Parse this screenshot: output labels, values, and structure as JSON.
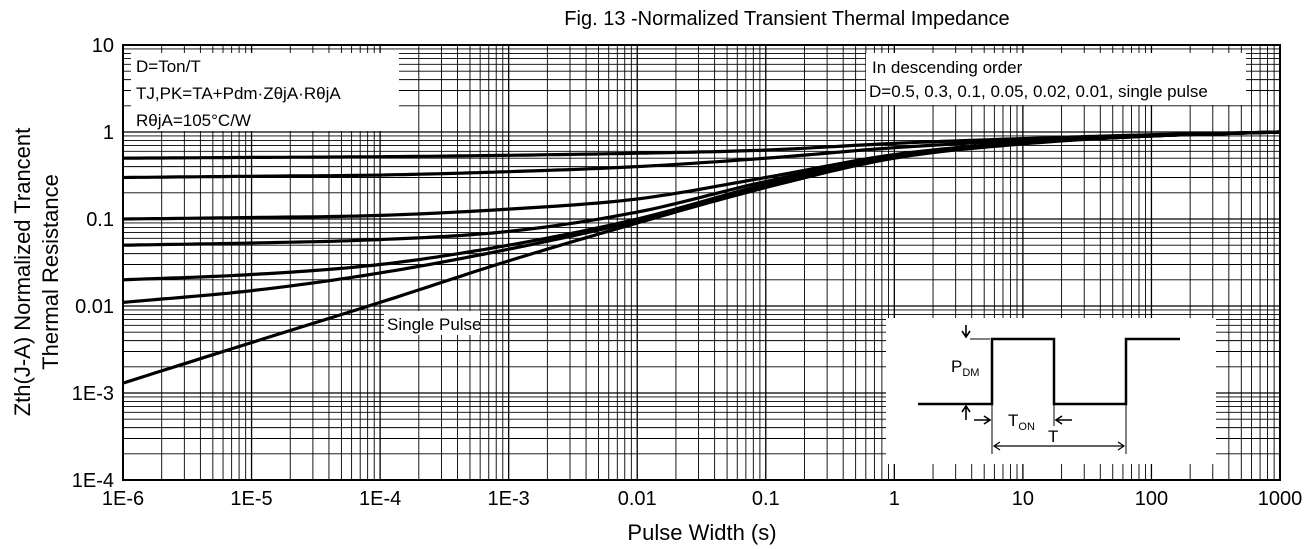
{
  "chart_data": {
    "type": "line",
    "title": "Fig. 13 -Normalized Transient Thermal Impedance",
    "xlabel": "Pulse Width (s)",
    "ylabel_line1": "Zth(J-A) Normalized Trancent",
    "ylabel_line2": "Thermal Resistance",
    "x_scale": "log",
    "y_scale": "log",
    "xlim": [
      1e-06,
      1000
    ],
    "ylim": [
      0.0001,
      10
    ],
    "grid": true,
    "x_tick_values": [
      1e-06,
      1e-05,
      0.0001,
      0.001,
      0.01,
      0.1,
      1,
      10,
      100,
      1000
    ],
    "x_tick_labels": [
      "1E-6",
      "1E-5",
      "1E-4",
      "1E-3",
      "0.01",
      "0.1",
      "1",
      "10",
      "100",
      "1000"
    ],
    "y_tick_values": [
      0.0001,
      0.001,
      0.01,
      0.1,
      1,
      10
    ],
    "y_tick_labels": [
      "1E-4",
      "1E-3",
      "0.01",
      "0.1",
      "1",
      "10"
    ],
    "series": [
      {
        "x": [
          1e-06,
          1e-05,
          0.0001,
          0.001,
          0.01,
          0.1,
          1,
          10,
          100,
          1000
        ],
        "y": [
          0.5,
          0.51,
          0.52,
          0.54,
          0.57,
          0.62,
          0.74,
          0.84,
          0.93,
          1.0
        ]
      },
      {
        "x": [
          1e-06,
          1e-05,
          0.0001,
          0.001,
          0.01,
          0.1,
          1,
          10,
          100,
          1000
        ],
        "y": [
          0.3,
          0.31,
          0.32,
          0.35,
          0.4,
          0.5,
          0.66,
          0.8,
          0.92,
          1.0
        ]
      },
      {
        "x": [
          1e-06,
          1e-05,
          0.0001,
          0.001,
          0.01,
          0.1,
          1,
          10,
          100,
          1000
        ],
        "y": [
          0.1,
          0.104,
          0.11,
          0.13,
          0.17,
          0.3,
          0.55,
          0.76,
          0.91,
          1.0
        ]
      },
      {
        "x": [
          1e-06,
          1e-05,
          0.0001,
          0.001,
          0.01,
          0.1,
          1,
          10,
          100,
          1000
        ],
        "y": [
          0.05,
          0.053,
          0.058,
          0.072,
          0.12,
          0.27,
          0.53,
          0.75,
          0.9,
          1.0
        ]
      },
      {
        "x": [
          1e-06,
          1e-05,
          0.0001,
          0.001,
          0.01,
          0.1,
          1,
          10,
          100,
          1000
        ],
        "y": [
          0.02,
          0.023,
          0.03,
          0.05,
          0.1,
          0.25,
          0.52,
          0.74,
          0.9,
          1.0
        ]
      },
      {
        "x": [
          1e-06,
          1e-05,
          0.0001,
          0.001,
          0.01,
          0.1,
          1,
          10,
          100,
          1000
        ],
        "y": [
          0.011,
          0.015,
          0.024,
          0.045,
          0.095,
          0.24,
          0.51,
          0.74,
          0.9,
          1.0
        ]
      },
      {
        "x": [
          1e-06,
          1e-05,
          0.0001,
          0.001,
          0.01,
          0.1,
          1,
          10,
          100,
          1000
        ],
        "y": [
          0.0013,
          0.0038,
          0.011,
          0.033,
          0.09,
          0.23,
          0.5,
          0.73,
          0.9,
          1.0
        ]
      }
    ],
    "annotations": {
      "formula_box": [
        "D=Ton/T",
        "TJ,PK=TA+Pdm·ZθjA·RθjA",
        "RθjA=105°C/W"
      ],
      "order_box": [
        "In descending order",
        "D=0.5, 0.3, 0.1, 0.05, 0.02, 0.01, single pulse"
      ],
      "single_pulse_label": "Single Pulse",
      "inset": {
        "pdm_label": "PDM",
        "ton_label": "TON",
        "t_label": "T"
      }
    }
  }
}
